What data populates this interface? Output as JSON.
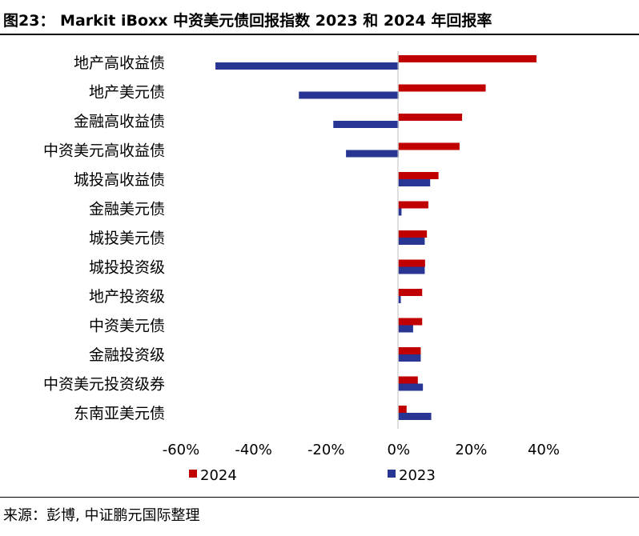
{
  "figure": {
    "title": "图23： Markit iBoxx 中资美元债回报指数 2023 和 2024 年回报率",
    "source": "来源：彭博, 中证鹏元国际整理"
  },
  "chart_data": {
    "type": "bar",
    "orientation": "horizontal",
    "title": "Markit iBoxx 中资美元债回报指数 2023 和 2024 年回报率",
    "categories": [
      "地产高收益债",
      "地产美元债",
      "金融高收益债",
      "中资美元高收益债",
      "城投高收益债",
      "金融美元债",
      "城投美元债",
      "城投投资级",
      "地产投资级",
      "中资美元债",
      "金融投资级",
      "中资美元投资级券",
      "东南亚美元债"
    ],
    "series": [
      {
        "name": "2024",
        "color": "#c00000",
        "values": [
          38.0,
          24.0,
          17.5,
          16.8,
          11.0,
          8.2,
          7.8,
          7.3,
          6.5,
          6.5,
          6.1,
          5.3,
          2.2
        ]
      },
      {
        "name": "2023",
        "color": "#283593",
        "values": [
          -50.5,
          -27.5,
          -18.0,
          -14.5,
          8.7,
          0.8,
          7.2,
          7.2,
          0.6,
          4.0,
          6.1,
          6.7,
          9.0
        ]
      }
    ],
    "xlim": [
      -60,
      40
    ],
    "xticks": [
      -60,
      -40,
      -20,
      0,
      20,
      40
    ],
    "xtick_labels": [
      "-60%",
      "-40%",
      "-20%",
      "0%",
      "20%",
      "40%"
    ],
    "legend": {
      "position": "bottom-left",
      "entries": [
        "2024",
        "2023"
      ]
    },
    "grid": false
  }
}
